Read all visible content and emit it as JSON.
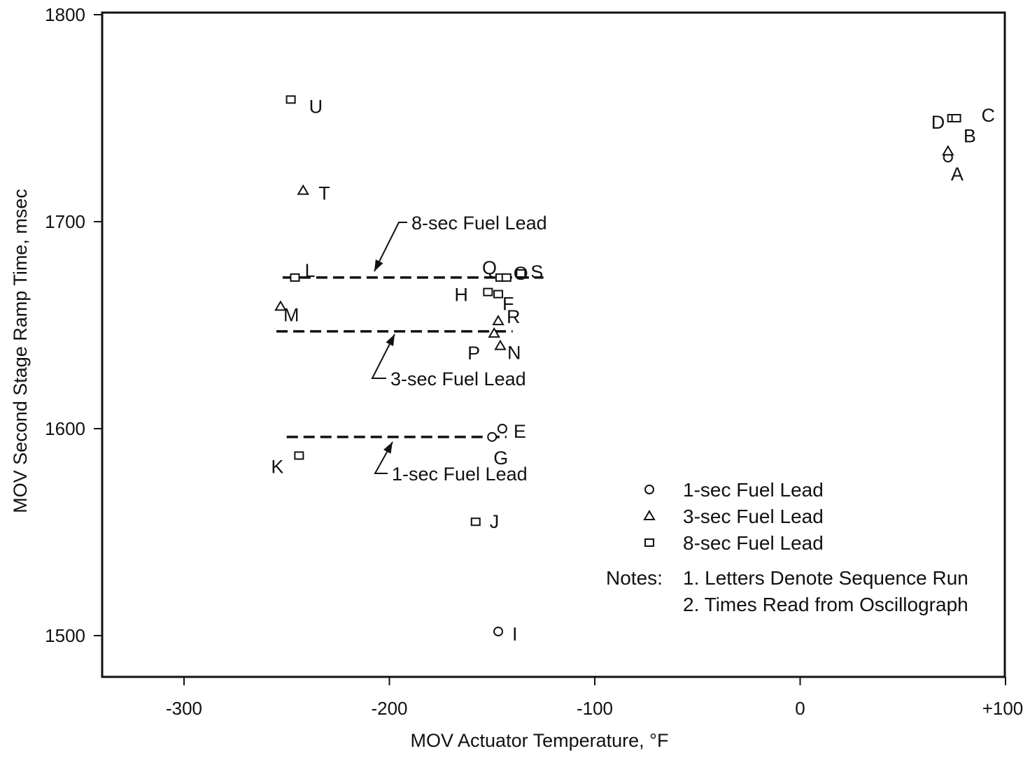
{
  "chart_data": {
    "type": "scatter",
    "xlabel": "MOV Actuator Temperature, °F",
    "ylabel": "MOV Second Stage Ramp Time, msec",
    "xlim": [
      -340,
      100
    ],
    "ylim": [
      1480,
      1800
    ],
    "xticks": [
      -300,
      -200,
      -100,
      0,
      100
    ],
    "xtick_labels": [
      "-300",
      "-200",
      "-100",
      "0",
      "+100"
    ],
    "yticks": [
      1500,
      1600,
      1700,
      1800
    ],
    "ytick_labels": [
      "1500",
      "1600",
      "1700",
      "1800"
    ],
    "grid": false,
    "legend_position": "bottom-right",
    "series": [
      {
        "name": "1-sec Fuel Lead",
        "marker": "circle",
        "points": [
          {
            "label": "A",
            "x": 72,
            "y": 1731
          },
          {
            "label": "E",
            "x": -145,
            "y": 1600
          },
          {
            "label": "G",
            "x": -150,
            "y": 1596
          },
          {
            "label": "I",
            "x": -147,
            "y": 1502
          }
        ]
      },
      {
        "name": "3-sec Fuel Lead",
        "marker": "triangle",
        "points": [
          {
            "label": "B",
            "x": 72,
            "y": 1734
          },
          {
            "label": "T",
            "x": -242,
            "y": 1715
          },
          {
            "label": "M",
            "x": -253,
            "y": 1659
          },
          {
            "label": "R",
            "x": -147,
            "y": 1652
          },
          {
            "label": "P",
            "x": -149,
            "y": 1646
          },
          {
            "label": "N",
            "x": -146,
            "y": 1640
          }
        ]
      },
      {
        "name": "8-sec Fuel Lead",
        "marker": "square",
        "points": [
          {
            "label": "U",
            "x": -248,
            "y": 1759
          },
          {
            "label": "D",
            "x": 74,
            "y": 1750
          },
          {
            "label": "C",
            "x": 76,
            "y": 1750
          },
          {
            "label": "L",
            "x": -246,
            "y": 1673
          },
          {
            "label": "Q",
            "x": -146,
            "y": 1673
          },
          {
            "label": "O",
            "x": -143,
            "y": 1673
          },
          {
            "label": "S",
            "x": -136,
            "y": 1675
          },
          {
            "label": "H",
            "x": -152,
            "y": 1666
          },
          {
            "label": "F",
            "x": -147,
            "y": 1665
          },
          {
            "label": "K",
            "x": -244,
            "y": 1587
          },
          {
            "label": "J",
            "x": -158,
            "y": 1555
          }
        ]
      }
    ],
    "reference_lines": [
      {
        "label": "8-sec Fuel Lead",
        "y": 1673,
        "x": [
          -252,
          -125
        ]
      },
      {
        "label": "3-sec Fuel Lead",
        "y": 1647,
        "x": [
          -255,
          -140
        ]
      },
      {
        "label": "1-sec Fuel Lead",
        "y": 1596,
        "x": [
          -250,
          -143
        ]
      }
    ],
    "legend": [
      {
        "marker": "circle",
        "label": "1-sec Fuel Lead"
      },
      {
        "marker": "triangle",
        "label": "3-sec Fuel Lead"
      },
      {
        "marker": "square",
        "label": "8-sec Fuel Lead"
      }
    ],
    "notes": {
      "heading": "Notes:",
      "items": [
        "1.  Letters Denote Sequence Run",
        "2.  Times Read from Oscillograph"
      ]
    }
  }
}
